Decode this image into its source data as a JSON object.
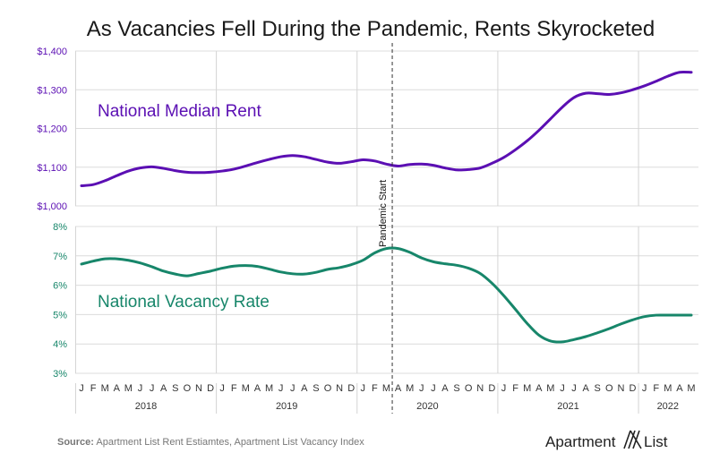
{
  "chart_data": {
    "type": "line",
    "title": "As Vacancies Fell During the Pandemic, Rents Skyrocketed",
    "x": [
      "2018-01",
      "2018-02",
      "2018-03",
      "2018-04",
      "2018-05",
      "2018-06",
      "2018-07",
      "2018-08",
      "2018-09",
      "2018-10",
      "2018-11",
      "2018-12",
      "2019-01",
      "2019-02",
      "2019-03",
      "2019-04",
      "2019-05",
      "2019-06",
      "2019-07",
      "2019-08",
      "2019-09",
      "2019-10",
      "2019-11",
      "2019-12",
      "2020-01",
      "2020-02",
      "2020-03",
      "2020-04",
      "2020-05",
      "2020-06",
      "2020-07",
      "2020-08",
      "2020-09",
      "2020-10",
      "2020-11",
      "2020-12",
      "2021-01",
      "2021-02",
      "2021-03",
      "2021-04",
      "2021-05",
      "2021-06",
      "2021-07",
      "2021-08",
      "2021-09",
      "2021-10",
      "2021-11",
      "2021-12",
      "2022-01",
      "2022-02",
      "2022-03",
      "2022-04",
      "2022-05"
    ],
    "month_labels": [
      "J",
      "F",
      "M",
      "A",
      "M",
      "J",
      "J",
      "A",
      "S",
      "O",
      "N",
      "D",
      "J",
      "F",
      "M",
      "A",
      "M",
      "J",
      "J",
      "A",
      "S",
      "O",
      "N",
      "D",
      "J",
      "F",
      "M",
      "A",
      "M",
      "J",
      "J",
      "A",
      "S",
      "O",
      "N",
      "D",
      "J",
      "F",
      "M",
      "A",
      "M",
      "J",
      "J",
      "A",
      "S",
      "O",
      "N",
      "D",
      "J",
      "F",
      "M",
      "A",
      "M"
    ],
    "years": [
      {
        "label": "2018",
        "start": 0,
        "end": 11
      },
      {
        "label": "2019",
        "start": 12,
        "end": 23
      },
      {
        "label": "2020",
        "start": 24,
        "end": 35
      },
      {
        "label": "2021",
        "start": 36,
        "end": 47
      },
      {
        "label": "2022",
        "start": 48,
        "end": 52
      }
    ],
    "panels": [
      {
        "name": "National Median Rent",
        "color": "#5b0fb3",
        "ylim": [
          1000,
          1400
        ],
        "yticks": [
          1000,
          1100,
          1200,
          1300,
          1400
        ],
        "tick_labels": [
          "$1,000",
          "$1,100",
          "$1,200",
          "$1,300",
          "$1,400"
        ],
        "values": [
          1052,
          1055,
          1065,
          1078,
          1090,
          1098,
          1101,
          1097,
          1091,
          1087,
          1086,
          1087,
          1090,
          1095,
          1103,
          1112,
          1120,
          1127,
          1130,
          1127,
          1120,
          1113,
          1110,
          1114,
          1119,
          1116,
          1108,
          1103,
          1107,
          1108,
          1105,
          1098,
          1093,
          1094,
          1098,
          1110,
          1125,
          1145,
          1168,
          1195,
          1225,
          1255,
          1280,
          1291,
          1290,
          1288,
          1292,
          1300,
          1310,
          1322,
          1335,
          1345,
          1345
        ]
      },
      {
        "name": "National Vacancy Rate",
        "color": "#17866a",
        "ylim": [
          3,
          8
        ],
        "yticks": [
          3,
          4,
          5,
          6,
          7,
          8
        ],
        "tick_labels": [
          "3%",
          "4%",
          "5%",
          "6%",
          "7%",
          "8%"
        ],
        "values": [
          6.72,
          6.82,
          6.9,
          6.9,
          6.85,
          6.76,
          6.63,
          6.48,
          6.38,
          6.32,
          6.4,
          6.48,
          6.58,
          6.65,
          6.67,
          6.64,
          6.55,
          6.45,
          6.39,
          6.38,
          6.44,
          6.54,
          6.6,
          6.7,
          6.85,
          7.1,
          7.25,
          7.25,
          7.12,
          6.93,
          6.8,
          6.73,
          6.68,
          6.58,
          6.4,
          6.07,
          5.65,
          5.18,
          4.7,
          4.3,
          4.1,
          4.07,
          4.15,
          4.25,
          4.38,
          4.52,
          4.68,
          4.82,
          4.93,
          4.98,
          4.98,
          4.98,
          4.98
        ]
      }
    ],
    "annotations": [
      {
        "text": "Pandemic Start",
        "x_index": 26.5,
        "style": "dashed vertical line"
      }
    ]
  },
  "source": {
    "bold": "Source:",
    "text": " Apartment List Rent Estiamtes, Apartment List Vacancy Index"
  },
  "brand": {
    "left": "Apartment",
    "right": "List"
  }
}
